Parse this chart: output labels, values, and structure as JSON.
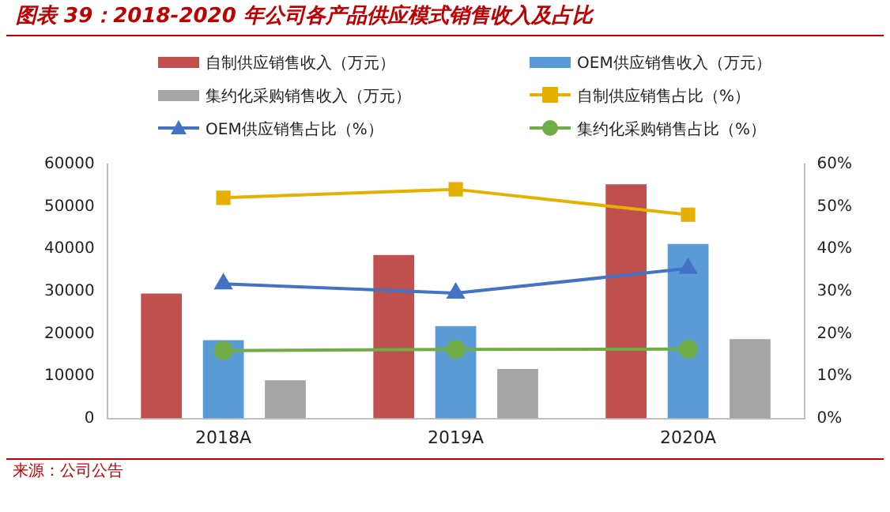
{
  "chart_data": {
    "type": "bar",
    "title": "图表 39：2018-2020 年公司各产品供应模式销售收入及占比",
    "categories": [
      "2018A",
      "2019A",
      "2020A"
    ],
    "series": [
      {
        "name": "自制供应销售收入（万元）",
        "color": "#c0504d",
        "values": [
          29500,
          38600,
          55300
        ]
      },
      {
        "name": "OEM供应销售收入（万元）",
        "color": "#5b9bd5",
        "values": [
          18500,
          21800,
          41200
        ]
      },
      {
        "name": "集约化采购销售收入（万元）",
        "color": "#a5a5a5",
        "values": [
          9000,
          11700,
          18700
        ]
      },
      {
        "name": "自制供应销售占比（%）",
        "type": "line",
        "axis": "y2",
        "marker": "square",
        "color": "#e6b000",
        "values": [
          52.1,
          54.1,
          48.1
        ]
      },
      {
        "name": "OEM供应销售占比（%）",
        "type": "line",
        "axis": "y2",
        "marker": "triangle",
        "color": "#4472c4",
        "values": [
          31.8,
          29.6,
          35.4
        ]
      },
      {
        "name": "集约化采购销售占比（%）",
        "type": "line",
        "axis": "y2",
        "marker": "circle",
        "color": "#70ad47",
        "values": [
          16.0,
          16.3,
          16.4
        ]
      }
    ],
    "ylim": [
      0,
      60000
    ],
    "yticks": [
      0,
      10000,
      20000,
      30000,
      40000,
      50000,
      60000
    ],
    "y2lim": [
      0,
      60
    ],
    "y2ticks": [
      {
        "value": 0,
        "label": "0%"
      },
      {
        "value": 10,
        "label": "10%"
      },
      {
        "value": 20,
        "label": "20%"
      },
      {
        "value": 30,
        "label": "30%"
      },
      {
        "value": 40,
        "label": "40%"
      },
      {
        "value": 50,
        "label": "50%"
      },
      {
        "value": 60,
        "label": "60%"
      }
    ],
    "grid": false,
    "legend": "top",
    "annotations": [
      "来源：公司公告"
    ]
  }
}
